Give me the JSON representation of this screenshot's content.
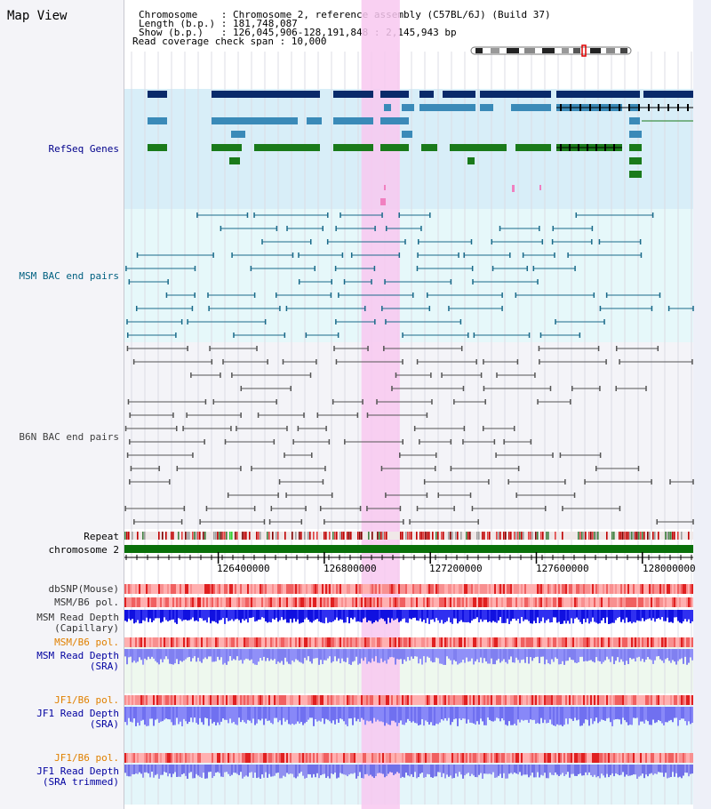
{
  "view_title": "Map View",
  "header": {
    "line1": "Chromosome    : Chromosome 2, reference assembly (C57BL/6J) (Build 37)",
    "line2": "Length (b.p.) : 181,748,087",
    "line3": "Show (b.p.)   : 126,045,906-128,191,848 : 2,145,943 bp",
    "line4": "Read coverage check span : 10,000"
  },
  "tracks": {
    "refseq": {
      "label": "RefSeq Genes",
      "color": "#00008b"
    },
    "msm_bac": {
      "label": "MSM BAC end pairs",
      "color": "#006080"
    },
    "b6n_bac": {
      "label": "B6N BAC end pairs",
      "color": "#404040"
    },
    "repeat": {
      "label": "Repeat"
    },
    "chromosome": {
      "label": "chromosome 2"
    },
    "dbsnp": {
      "label": "dbSNP(Mouse)"
    },
    "msm_b6_pol_1": {
      "label": "MSM/B6 pol."
    },
    "msm_depth_cap": {
      "label1": "MSM Read Depth",
      "label2": "(Capillary)"
    },
    "msm_b6_pol_2": {
      "label": "MSM/B6 pol.",
      "color": "#e08000"
    },
    "msm_depth_sra": {
      "label1": "MSM Read Depth",
      "label2": "(SRA)",
      "color": "#0000a0"
    },
    "jf1_b6_pol_1": {
      "label": "JF1/B6 pol.",
      "color": "#e08000"
    },
    "jf1_depth_sra": {
      "label1": "JF1 Read Depth",
      "label2": "(SRA)",
      "color": "#0000a0"
    },
    "jf1_b6_pol_2": {
      "label": "JF1/B6 pol.",
      "color": "#e08000"
    },
    "jf1_depth_trim": {
      "label1": "JF1 Read Depth",
      "label2": "(SRA trimmed)",
      "color": "#0000a0"
    }
  },
  "axis": {
    "ticks": [
      "126400000",
      "126800000",
      "127200000",
      "127600000",
      "128000000"
    ],
    "tick_values": [
      126400000,
      126800000,
      127200000,
      127600000,
      128000000
    ],
    "range": [
      126045906,
      128191848
    ]
  },
  "highlight": {
    "start": 126940000,
    "end": 127085000,
    "color": "#f8c8f0"
  }
}
